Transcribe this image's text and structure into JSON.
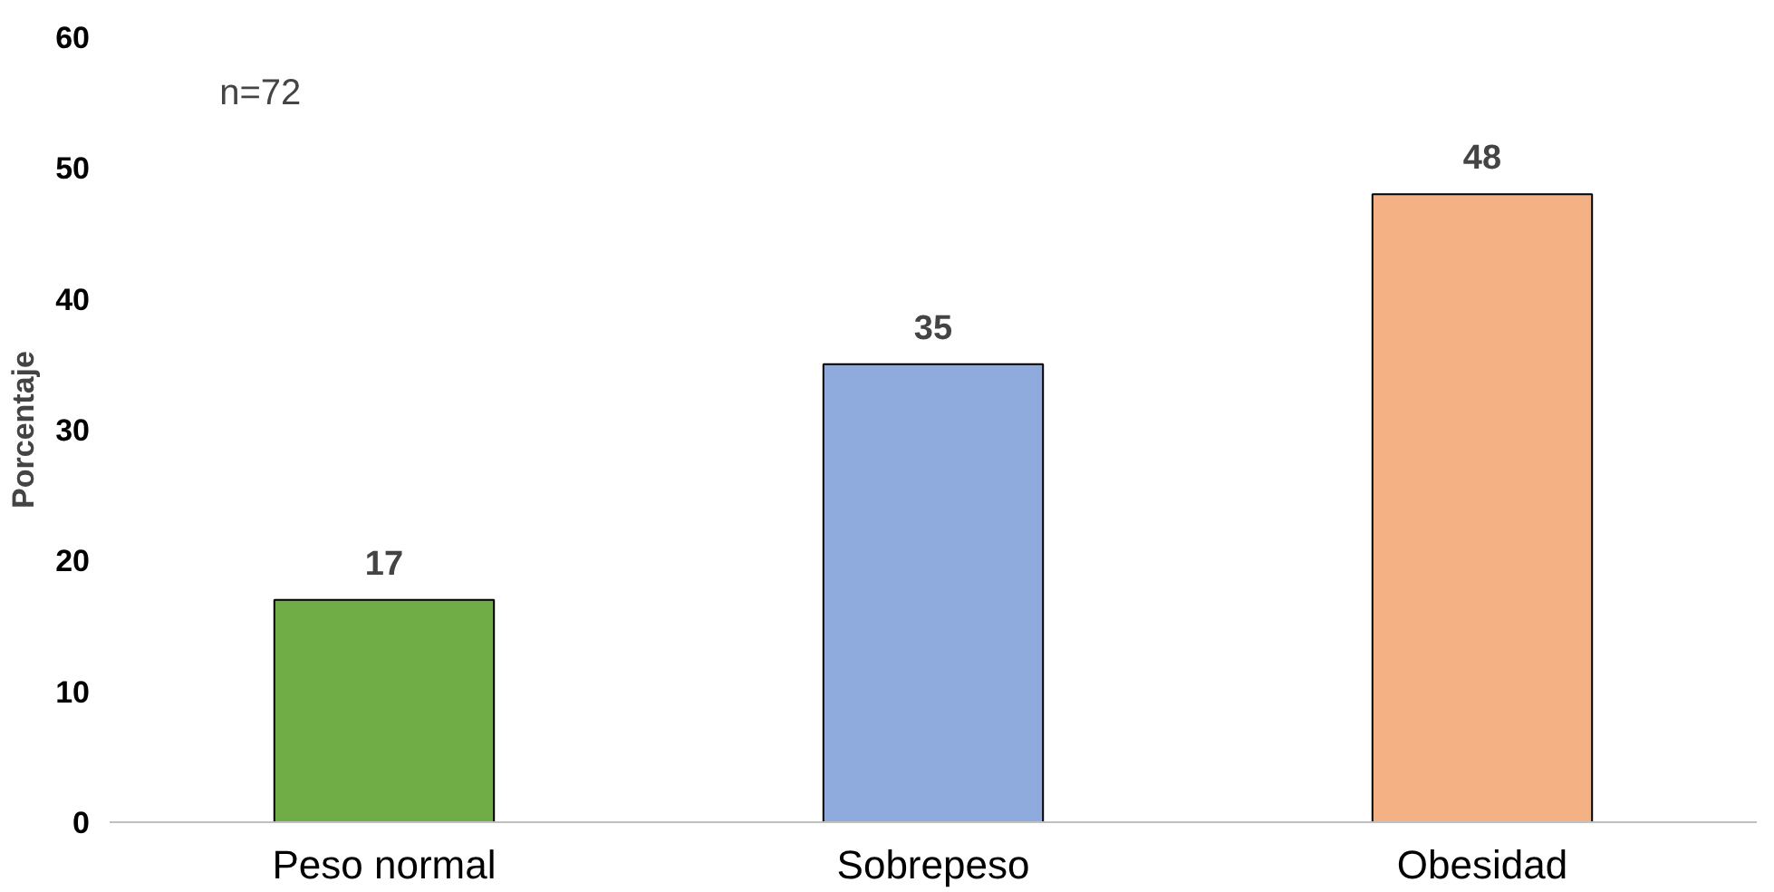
{
  "chart_data": {
    "type": "bar",
    "ylabel": "Porcentaje",
    "categories": [
      "Peso normal",
      "Sobrepeso",
      "Obesidad"
    ],
    "values": [
      17,
      35,
      48
    ],
    "colors": [
      "#70ad47",
      "#8faadc",
      "#f4b183"
    ],
    "ylim": [
      0,
      60
    ],
    "yticks": [
      0,
      10,
      20,
      30,
      40,
      50,
      60
    ],
    "grid": false,
    "data_labels": true,
    "annotations": [
      "n=72"
    ]
  }
}
